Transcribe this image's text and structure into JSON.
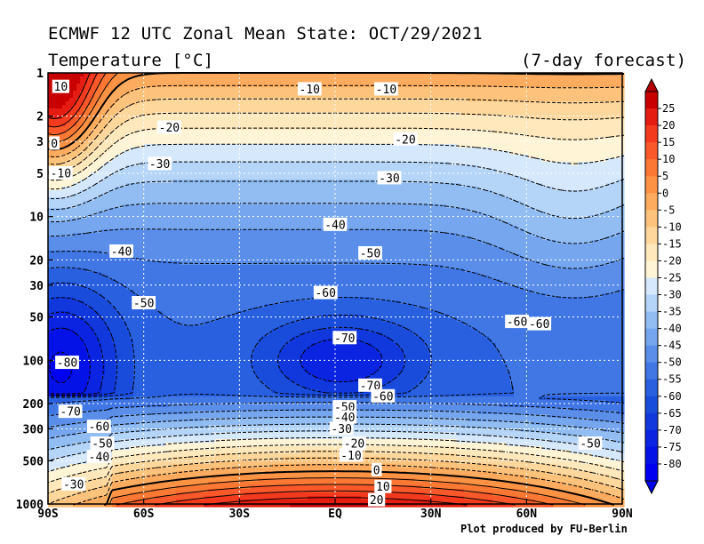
{
  "header": {
    "title": "ECMWF 12 UTC Zonal Mean State: OCT/29/2021",
    "subtitle": "Temperature [°C]",
    "forecast_note": "(7-day forecast)"
  },
  "footer": {
    "credit": "Plot produced by FU-Berlin"
  },
  "chart_data": {
    "type": "heatmap",
    "title": "ECMWF 12 UTC Zonal Mean State: OCT/29/2021",
    "subtitle": "Temperature [°C]",
    "x": {
      "values": [
        -90,
        -60,
        -30,
        0,
        30,
        60,
        90
      ],
      "tick_labels": [
        "90S",
        "60S",
        "30S",
        "EQ",
        "30N",
        "60N",
        "90N"
      ],
      "range": [
        -90,
        90
      ]
    },
    "y": {
      "scale": "log",
      "reversed": true,
      "range": [
        1,
        1000
      ],
      "ticks": [
        1,
        2,
        3,
        5,
        10,
        20,
        30,
        50,
        100,
        200,
        300,
        500,
        1000
      ],
      "tick_labels": [
        "1",
        "2",
        "3",
        "5",
        "10",
        "20",
        "30",
        "50",
        "100",
        "200",
        "300",
        "500",
        "1000"
      ]
    },
    "grid": true,
    "colorbar": {
      "levels": [
        25,
        20,
        15,
        10,
        5,
        0,
        -5,
        -10,
        -15,
        -20,
        -25,
        -30,
        -35,
        -40,
        -45,
        -50,
        -55,
        -60,
        -65,
        -70,
        -75,
        -80
      ],
      "labels": [
        "25",
        "20",
        "15",
        "10",
        "5",
        "0",
        "-5",
        "-10",
        "-15",
        "-20",
        "-25",
        "-30",
        "-35",
        "-40",
        "-45",
        "-50",
        "-55",
        "-60",
        "-65",
        "-70",
        "-75",
        "-80"
      ]
    },
    "contour_labels": [
      {
        "text": "10",
        "lat": -86,
        "p": 1.25
      },
      {
        "text": "0",
        "lat": -88,
        "p": 3.1
      },
      {
        "text": "-10",
        "lat": -86,
        "p": 5.0
      },
      {
        "text": "-10",
        "lat": -8,
        "p": 1.3
      },
      {
        "text": "-10",
        "lat": 16,
        "p": 1.3
      },
      {
        "text": "-20",
        "lat": -52,
        "p": 2.4
      },
      {
        "text": "-20",
        "lat": 22,
        "p": 2.9
      },
      {
        "text": "-30",
        "lat": -55,
        "p": 4.3
      },
      {
        "text": "-30",
        "lat": 17,
        "p": 5.4
      },
      {
        "text": "-40",
        "lat": -67,
        "p": 17.5
      },
      {
        "text": "-40",
        "lat": 0,
        "p": 11.4
      },
      {
        "text": "-50",
        "lat": -60,
        "p": 40
      },
      {
        "text": "-50",
        "lat": 11,
        "p": 18
      },
      {
        "text": "-60",
        "lat": -3,
        "p": 34
      },
      {
        "text": "-60",
        "lat": 57,
        "p": 54
      },
      {
        "text": "-60",
        "lat": 64,
        "p": 56
      },
      {
        "text": "-70",
        "lat": 3,
        "p": 70
      },
      {
        "text": "-70",
        "lat": 11,
        "p": 150
      },
      {
        "text": "-60",
        "lat": 15,
        "p": 178
      },
      {
        "text": "-80",
        "lat": -84,
        "p": 104
      },
      {
        "text": "-70",
        "lat": -83,
        "p": 228
      },
      {
        "text": "-60",
        "lat": -74,
        "p": 290
      },
      {
        "text": "-50",
        "lat": -73,
        "p": 380
      },
      {
        "text": "-40",
        "lat": -74,
        "p": 470
      },
      {
        "text": "-30",
        "lat": -82,
        "p": 730
      },
      {
        "text": "-50",
        "lat": 3,
        "p": 212
      },
      {
        "text": "-40",
        "lat": 3,
        "p": 250
      },
      {
        "text": "-30",
        "lat": 2,
        "p": 300
      },
      {
        "text": "-20",
        "lat": 6,
        "p": 380
      },
      {
        "text": "-10",
        "lat": 5,
        "p": 460
      },
      {
        "text": "0",
        "lat": 13,
        "p": 580
      },
      {
        "text": "10",
        "lat": 15,
        "p": 760
      },
      {
        "text": "20",
        "lat": 13,
        "p": 940
      },
      {
        "text": "-50",
        "lat": 80,
        "p": 380
      }
    ]
  }
}
